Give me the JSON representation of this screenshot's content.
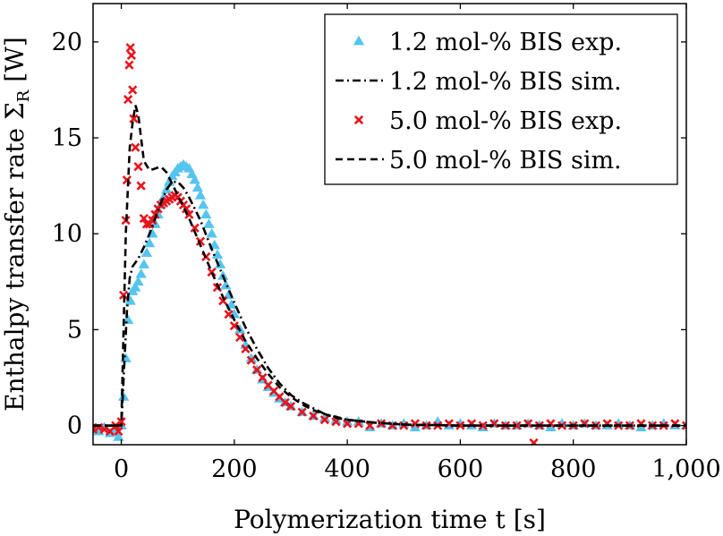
{
  "chart_data": {
    "type": "scatter",
    "title": "",
    "xlabel": "Polymerization time t [s]",
    "ylabel": "Enthalpy transfer rate Σ_R [W]",
    "xlim": [
      -50,
      1000
    ],
    "ylim": [
      -1,
      22
    ],
    "grid": false,
    "legend_position": "top-right",
    "x_ticks": [
      0,
      200,
      400,
      600,
      800,
      1000
    ],
    "x_tick_labels": [
      "0",
      "200",
      "400",
      "600",
      "800",
      "1,000"
    ],
    "y_ticks": [
      0,
      5,
      10,
      15,
      20
    ],
    "y_tick_labels": [
      "0",
      "5",
      "10",
      "15",
      "20"
    ],
    "series": [
      {
        "name": "1.2 mol-% BIS exp.",
        "kind": "markers",
        "marker": "triangle",
        "color": "#55c5ef",
        "points": [
          [
            -50,
            -0.2
          ],
          [
            -40,
            -0.3
          ],
          [
            -30,
            -0.1
          ],
          [
            -20,
            -0.4
          ],
          [
            -10,
            -0.2
          ],
          [
            -5,
            -0.6
          ],
          [
            0,
            0.0
          ],
          [
            4,
            1.5
          ],
          [
            8,
            3.5
          ],
          [
            12,
            5.5
          ],
          [
            16,
            6.5
          ],
          [
            20,
            7.0
          ],
          [
            25,
            7.2
          ],
          [
            30,
            7.5
          ],
          [
            35,
            7.9
          ],
          [
            40,
            8.4
          ],
          [
            45,
            9.0
          ],
          [
            50,
            9.5
          ],
          [
            55,
            10.0
          ],
          [
            60,
            10.5
          ],
          [
            65,
            11.0
          ],
          [
            70,
            11.5
          ],
          [
            75,
            11.9
          ],
          [
            80,
            12.3
          ],
          [
            85,
            12.7
          ],
          [
            90,
            13.0
          ],
          [
            95,
            13.2
          ],
          [
            100,
            13.4
          ],
          [
            105,
            13.5
          ],
          [
            110,
            13.6
          ],
          [
            115,
            13.5
          ],
          [
            120,
            13.4
          ],
          [
            125,
            13.1
          ],
          [
            130,
            12.8
          ],
          [
            135,
            12.4
          ],
          [
            140,
            12.0
          ],
          [
            145,
            11.5
          ],
          [
            150,
            11.0
          ],
          [
            155,
            10.5
          ],
          [
            160,
            10.0
          ],
          [
            165,
            9.4
          ],
          [
            170,
            8.9
          ],
          [
            175,
            8.4
          ],
          [
            180,
            7.8
          ],
          [
            185,
            7.3
          ],
          [
            190,
            6.8
          ],
          [
            195,
            6.3
          ],
          [
            200,
            5.8
          ],
          [
            210,
            5.0
          ],
          [
            220,
            4.2
          ],
          [
            230,
            3.5
          ],
          [
            240,
            2.9
          ],
          [
            250,
            2.4
          ],
          [
            260,
            2.0
          ],
          [
            270,
            1.7
          ],
          [
            280,
            1.4
          ],
          [
            290,
            1.2
          ],
          [
            300,
            1.0
          ],
          [
            320,
            0.7
          ],
          [
            340,
            0.5
          ],
          [
            360,
            0.4
          ],
          [
            380,
            0.3
          ],
          [
            400,
            0.2
          ],
          [
            420,
            0.2
          ],
          [
            440,
            -0.1
          ],
          [
            460,
            0.1
          ],
          [
            480,
            0.0
          ],
          [
            500,
            0.1
          ],
          [
            520,
            -0.1
          ],
          [
            540,
            0.0
          ],
          [
            560,
            0.2
          ],
          [
            580,
            0.0
          ],
          [
            600,
            0.1
          ],
          [
            620,
            0.0
          ],
          [
            640,
            -0.1
          ],
          [
            660,
            0.1
          ],
          [
            680,
            0.0
          ],
          [
            700,
            0.0
          ],
          [
            720,
            0.1
          ],
          [
            740,
            0.0
          ],
          [
            760,
            -0.1
          ],
          [
            780,
            0.1
          ],
          [
            800,
            0.0
          ],
          [
            820,
            0.1
          ],
          [
            840,
            0.0
          ],
          [
            860,
            0.0
          ],
          [
            880,
            0.1
          ],
          [
            900,
            0.0
          ],
          [
            920,
            -0.1
          ],
          [
            940,
            0.0
          ],
          [
            960,
            0.1
          ],
          [
            980,
            0.0
          ],
          [
            1000,
            0.0
          ]
        ]
      },
      {
        "name": "1.2 mol-% BIS sim.",
        "kind": "line",
        "dash": "dashdot",
        "color": "#000000",
        "points": [
          [
            -50,
            0.0
          ],
          [
            0,
            0.0
          ],
          [
            5,
            3.0
          ],
          [
            10,
            6.0
          ],
          [
            15,
            7.7
          ],
          [
            20,
            8.3
          ],
          [
            25,
            8.5
          ],
          [
            30,
            8.7
          ],
          [
            40,
            9.3
          ],
          [
            50,
            10.0
          ],
          [
            60,
            10.8
          ],
          [
            70,
            11.6
          ],
          [
            80,
            12.3
          ],
          [
            90,
            12.7
          ],
          [
            100,
            12.7
          ],
          [
            110,
            12.4
          ],
          [
            120,
            11.9
          ],
          [
            140,
            10.7
          ],
          [
            160,
            9.2
          ],
          [
            180,
            7.8
          ],
          [
            200,
            6.4
          ],
          [
            220,
            5.1
          ],
          [
            240,
            4.0
          ],
          [
            260,
            3.0
          ],
          [
            280,
            2.2
          ],
          [
            300,
            1.6
          ],
          [
            320,
            1.2
          ],
          [
            340,
            0.9
          ],
          [
            360,
            0.6
          ],
          [
            400,
            0.3
          ],
          [
            450,
            0.15
          ],
          [
            500,
            0.05
          ],
          [
            600,
            0.0
          ],
          [
            1000,
            0.0
          ]
        ]
      },
      {
        "name": "5.0 mol-% BIS exp.",
        "kind": "markers",
        "marker": "cross",
        "color": "#e8141c",
        "points": [
          [
            -50,
            -0.2
          ],
          [
            -40,
            -0.1
          ],
          [
            -30,
            -0.2
          ],
          [
            -20,
            -0.3
          ],
          [
            -10,
            0.0
          ],
          [
            -5,
            -0.3
          ],
          [
            0,
            0.2
          ],
          [
            4,
            6.8
          ],
          [
            8,
            10.7
          ],
          [
            10,
            12.8
          ],
          [
            12,
            17.0
          ],
          [
            14,
            18.8
          ],
          [
            16,
            19.7
          ],
          [
            18,
            19.3
          ],
          [
            20,
            17.5
          ],
          [
            22,
            16.0
          ],
          [
            25,
            14.5
          ],
          [
            30,
            13.5
          ],
          [
            35,
            12.5
          ],
          [
            40,
            10.8
          ],
          [
            45,
            10.5
          ],
          [
            50,
            10.5
          ],
          [
            55,
            10.7
          ],
          [
            60,
            11.0
          ],
          [
            65,
            11.3
          ],
          [
            70,
            11.5
          ],
          [
            75,
            11.6
          ],
          [
            80,
            11.7
          ],
          [
            85,
            11.8
          ],
          [
            90,
            11.9
          ],
          [
            95,
            12.0
          ],
          [
            100,
            11.9
          ],
          [
            105,
            11.7
          ],
          [
            110,
            11.5
          ],
          [
            115,
            11.3
          ],
          [
            120,
            11.0
          ],
          [
            130,
            10.3
          ],
          [
            140,
            9.6
          ],
          [
            150,
            8.8
          ],
          [
            160,
            8.0
          ],
          [
            170,
            7.2
          ],
          [
            180,
            6.5
          ],
          [
            190,
            5.8
          ],
          [
            200,
            5.2
          ],
          [
            210,
            4.6
          ],
          [
            220,
            4.0
          ],
          [
            230,
            3.4
          ],
          [
            240,
            2.9
          ],
          [
            250,
            2.5
          ],
          [
            260,
            2.1
          ],
          [
            270,
            1.8
          ],
          [
            280,
            1.5
          ],
          [
            290,
            1.2
          ],
          [
            300,
            1.0
          ],
          [
            320,
            0.7
          ],
          [
            340,
            0.5
          ],
          [
            360,
            0.3
          ],
          [
            380,
            0.2
          ],
          [
            400,
            0.1
          ],
          [
            420,
            0.1
          ],
          [
            440,
            0.0
          ],
          [
            460,
            0.1
          ],
          [
            480,
            0.0
          ],
          [
            500,
            0.0
          ],
          [
            520,
            0.1
          ],
          [
            540,
            0.0
          ],
          [
            560,
            0.0
          ],
          [
            580,
            0.1
          ],
          [
            600,
            0.0
          ],
          [
            620,
            0.1
          ],
          [
            640,
            0.0
          ],
          [
            660,
            0.1
          ],
          [
            680,
            0.0
          ],
          [
            700,
            0.0
          ],
          [
            720,
            0.1
          ],
          [
            730,
            -0.9
          ],
          [
            740,
            0.0
          ],
          [
            760,
            0.1
          ],
          [
            780,
            0.0
          ],
          [
            800,
            0.0
          ],
          [
            820,
            0.1
          ],
          [
            840,
            0.0
          ],
          [
            860,
            0.1
          ],
          [
            880,
            0.0
          ],
          [
            900,
            0.0
          ],
          [
            920,
            0.1
          ],
          [
            940,
            0.0
          ],
          [
            960,
            0.0
          ],
          [
            980,
            0.1
          ],
          [
            1000,
            0.0
          ]
        ]
      },
      {
        "name": "5.0 mol-% BIS sim.",
        "kind": "line",
        "dash": "dashed",
        "color": "#000000",
        "points": [
          [
            -50,
            0.0
          ],
          [
            0,
            0.0
          ],
          [
            8,
            10.0
          ],
          [
            15,
            14.5
          ],
          [
            20,
            15.8
          ],
          [
            25,
            16.7
          ],
          [
            30,
            16.2
          ],
          [
            40,
            13.8
          ],
          [
            50,
            13.3
          ],
          [
            60,
            13.4
          ],
          [
            70,
            13.5
          ],
          [
            80,
            13.2
          ],
          [
            90,
            12.6
          ],
          [
            100,
            12.0
          ],
          [
            110,
            11.4
          ],
          [
            120,
            10.8
          ],
          [
            140,
            9.4
          ],
          [
            160,
            8.0
          ],
          [
            180,
            6.7
          ],
          [
            200,
            5.5
          ],
          [
            220,
            4.4
          ],
          [
            240,
            3.5
          ],
          [
            260,
            2.7
          ],
          [
            280,
            2.0
          ],
          [
            300,
            1.5
          ],
          [
            320,
            1.1
          ],
          [
            340,
            0.8
          ],
          [
            360,
            0.6
          ],
          [
            380,
            0.4
          ],
          [
            400,
            0.3
          ],
          [
            450,
            0.15
          ],
          [
            500,
            0.05
          ],
          [
            600,
            0.0
          ],
          [
            1000,
            0.0
          ]
        ]
      }
    ]
  }
}
